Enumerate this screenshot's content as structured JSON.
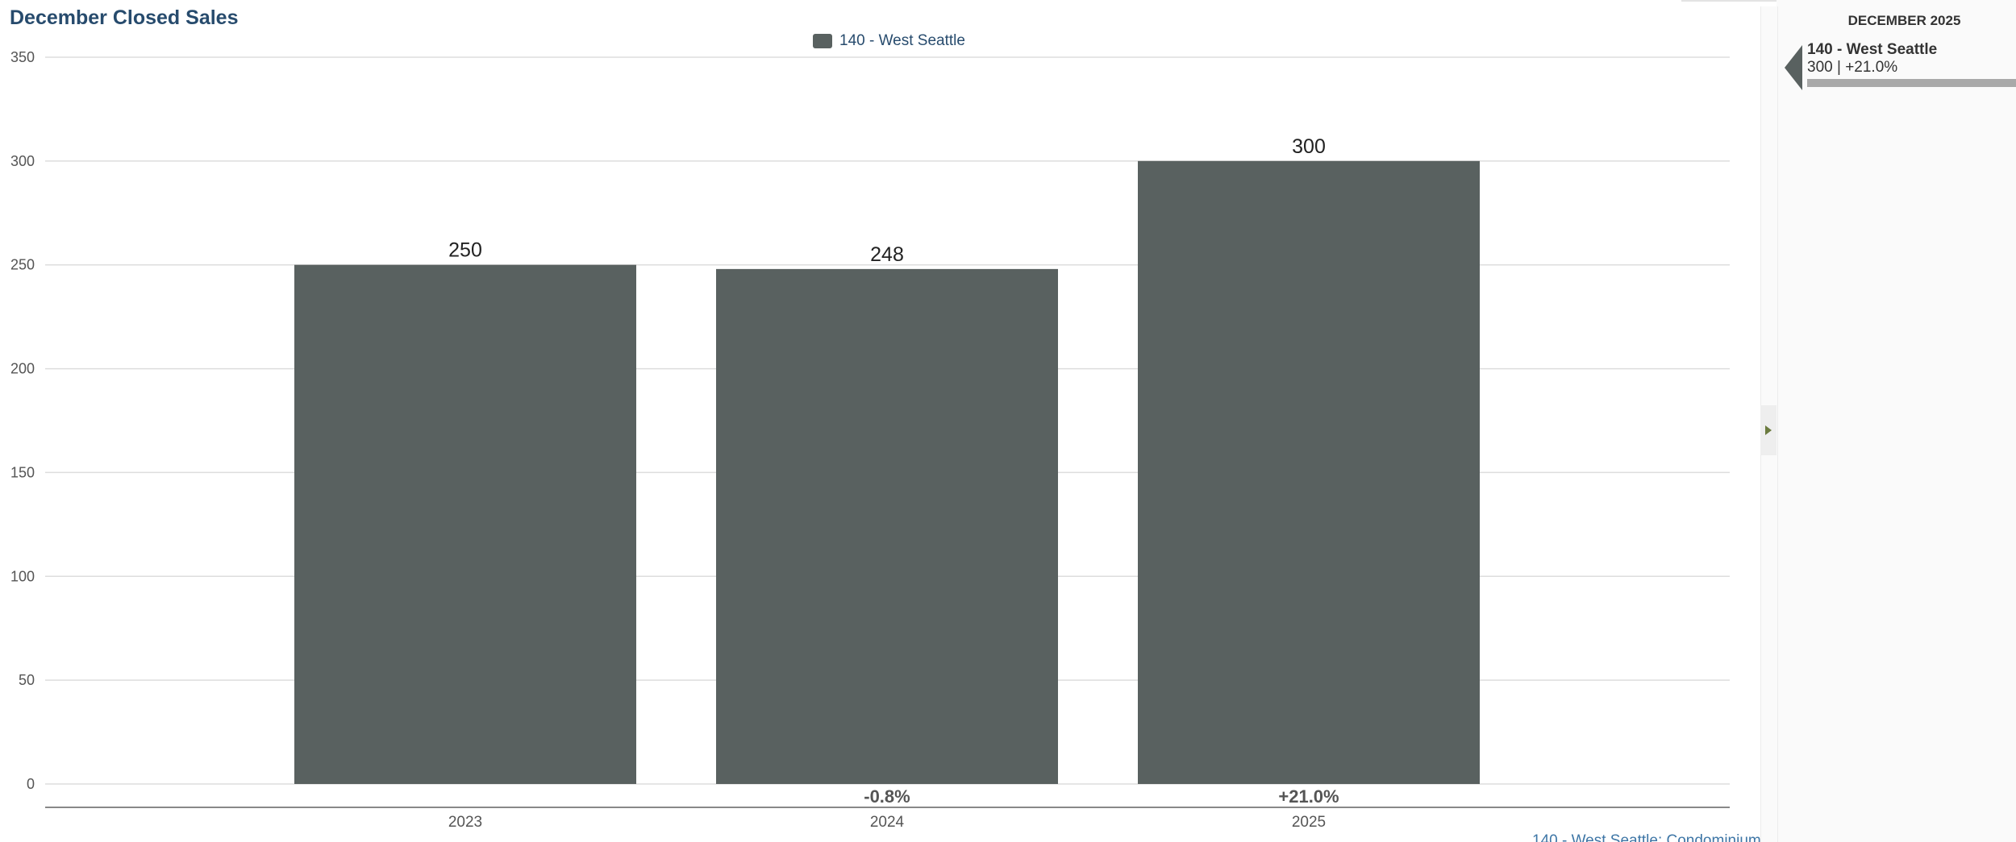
{
  "chart_data": {
    "type": "bar",
    "title": "December Closed Sales",
    "categories": [
      "2023",
      "2024",
      "2025"
    ],
    "series": [
      {
        "name": "140 - West Seattle",
        "values": [
          250,
          248,
          300
        ],
        "color": "#596160"
      }
    ],
    "change_labels": [
      "",
      "-0.8%",
      "+21.0%"
    ],
    "y_ticks": [
      0,
      50,
      100,
      150,
      200,
      250,
      300,
      350
    ],
    "ylim": [
      0,
      350
    ],
    "xlabel": "",
    "ylabel": "",
    "grid": true,
    "legend_position": "top-center"
  },
  "footer_link": "140 - West Seattle: Condominium",
  "side_panel": {
    "header": "DECEMBER 2025",
    "item_name": "140 - West Seattle",
    "item_value": "300 | +21.0%",
    "item_bar_fraction": 1.0
  },
  "colors": {
    "bar": "#596160",
    "title": "#274b6d",
    "grid": "#dddddd",
    "axis_text": "#555555"
  }
}
